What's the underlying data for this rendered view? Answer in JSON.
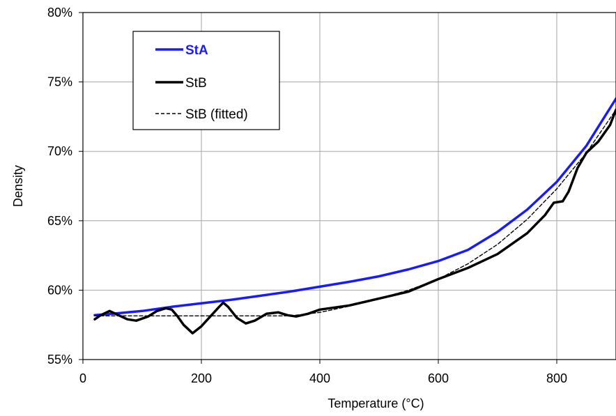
{
  "chart_data": {
    "type": "line",
    "xlabel": "Temperature (°C)",
    "ylabel": "Density",
    "xlim": [
      0,
      900
    ],
    "ylim": [
      55,
      80
    ],
    "xticks": [
      0,
      200,
      400,
      600,
      800
    ],
    "xtick_labels": [
      "0",
      "200",
      "400",
      "600",
      "800"
    ],
    "yticks": [
      55,
      60,
      65,
      70,
      75,
      80
    ],
    "ytick_labels": [
      "55%",
      "60%",
      "65%",
      "70%",
      "75%",
      "80%"
    ],
    "grid": true,
    "legend_position": "top-left",
    "series": [
      {
        "name": "StA",
        "color": "#1a1aff",
        "style": "solid-bold",
        "x": [
          20,
          50,
          100,
          150,
          200,
          250,
          300,
          350,
          400,
          450,
          500,
          550,
          600,
          650,
          700,
          750,
          800,
          850,
          900
        ],
        "y": [
          58.2,
          58.3,
          58.5,
          58.8,
          59.05,
          59.3,
          59.6,
          59.9,
          60.25,
          60.6,
          61.0,
          61.5,
          62.1,
          62.9,
          64.2,
          65.8,
          67.8,
          70.4,
          73.8
        ]
      },
      {
        "name": "StB",
        "color": "#000000",
        "style": "solid-bold",
        "x": [
          20,
          30,
          45,
          60,
          75,
          90,
          110,
          125,
          140,
          150,
          160,
          170,
          185,
          200,
          215,
          230,
          237,
          245,
          260,
          275,
          290,
          310,
          330,
          345,
          360,
          380,
          400,
          450,
          500,
          550,
          600,
          650,
          700,
          750,
          780,
          795,
          810,
          820,
          835,
          850,
          870,
          890,
          900
        ],
        "y": [
          57.9,
          58.2,
          58.5,
          58.2,
          57.9,
          57.8,
          58.1,
          58.5,
          58.7,
          58.6,
          58.1,
          57.5,
          56.9,
          57.4,
          58.1,
          58.8,
          59.1,
          58.8,
          58.0,
          57.6,
          57.8,
          58.3,
          58.4,
          58.2,
          58.1,
          58.3,
          58.6,
          58.9,
          59.4,
          59.9,
          60.8,
          61.6,
          62.6,
          64.1,
          65.4,
          66.3,
          66.4,
          67.1,
          68.8,
          69.9,
          70.7,
          71.9,
          73.0
        ]
      },
      {
        "name": "StB (fitted)",
        "color": "#000000",
        "style": "dashed",
        "x": [
          20,
          100,
          200,
          300,
          350,
          400,
          450,
          500,
          550,
          600,
          650,
          700,
          750,
          800,
          850,
          900
        ],
        "y": [
          58.15,
          58.15,
          58.15,
          58.15,
          58.15,
          58.4,
          58.85,
          59.4,
          60.0,
          60.8,
          61.9,
          63.3,
          65.1,
          67.3,
          69.9,
          73.0
        ]
      }
    ]
  }
}
